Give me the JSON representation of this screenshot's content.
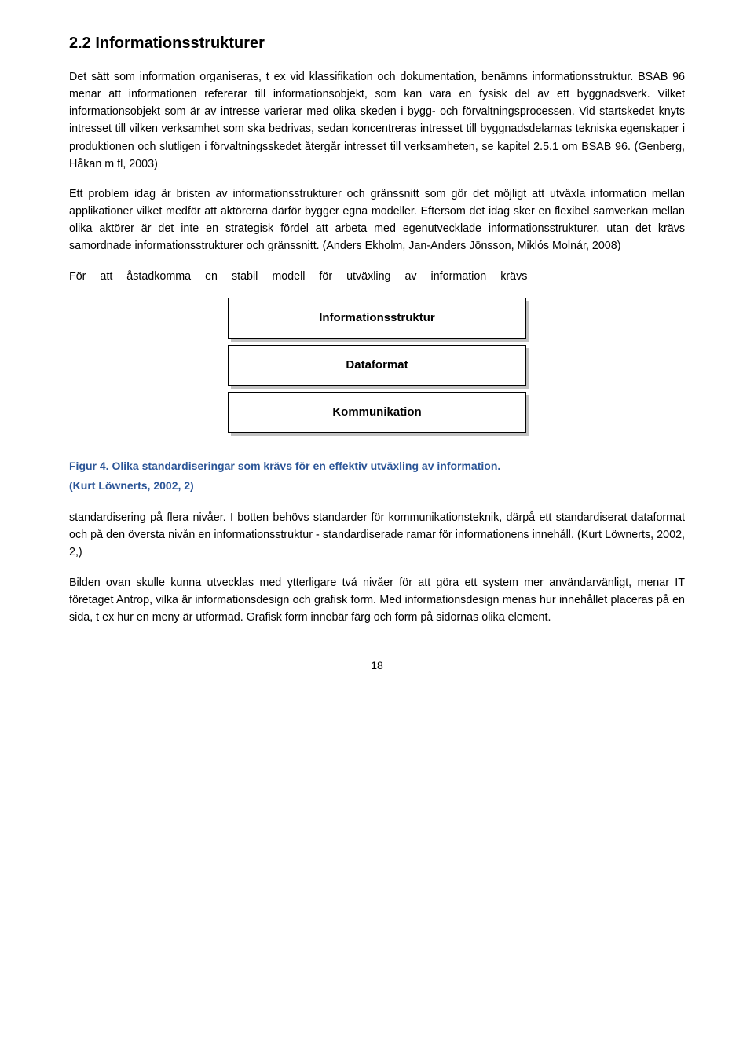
{
  "section": {
    "heading": "2.2 Informationsstrukturer",
    "paragraphs": [
      "Det sätt som information organiseras, t ex vid klassifikation och dokumentation, benämns informationsstruktur. BSAB 96 menar att informationen refererar till informationsobjekt, som kan vara en fysisk del av ett byggnadsverk. Vilket informationsobjekt som är av intresse varierar med olika skeden i bygg- och förvaltningsprocessen. Vid startskedet knyts intresset till vilken verksamhet som ska bedrivas, sedan koncentreras intresset till byggnadsdelarnas tekniska egenskaper i produktionen och slutligen i förvaltningsskedet återgår intresset till verksamheten, se kapitel 2.5.1 om BSAB 96. (Genberg, Håkan m fl, 2003)",
      "Ett problem idag är bristen av informationsstrukturer och gränssnitt som gör det möjligt att utväxla information mellan applikationer vilket medför att aktörerna därför bygger egna modeller. Eftersom det idag sker en flexibel samverkan mellan olika aktörer är det inte en strategisk fördel att arbeta med egenutvecklade informationsstrukturer, utan det krävs samordnade informationsstrukturer och gränssnitt. (Anders Ekholm, Jan-Anders Jönsson, Miklós Molnár, 2008)",
      "För att åstadkomma en stabil modell för utväxling av information krävs"
    ]
  },
  "diagram": {
    "type": "flowchart",
    "background_color": "#ffffff",
    "box_border_color": "#000000",
    "box_fill": "#ffffff",
    "shadow_color": "#c2c2c2",
    "font_weight": "bold",
    "font_size_pt": 11,
    "nodes": [
      {
        "label": "Informationsstruktur"
      },
      {
        "label": "Dataformat"
      },
      {
        "label": "Kommunikation"
      }
    ]
  },
  "figure": {
    "caption": "Figur 4. Olika standardiseringar som krävs för en effektiv utväxling av information.",
    "subcaption": "(Kurt Löwnerts, 2002, 2)",
    "caption_color": "#2b5597"
  },
  "after_figure_paragraphs": [
    "standardisering på flera nivåer. I botten behövs standarder för kommunikationsteknik, därpå ett standardiserat dataformat och på den översta nivån en informationsstruktur - standardiserade ramar för informationens innehåll. (Kurt Löwnerts, 2002, 2,)",
    "Bilden ovan skulle kunna utvecklas med ytterligare två nivåer för att göra ett system mer användarvänligt, menar IT företaget Antrop, vilka är informationsdesign och grafisk form. Med informationsdesign menas hur innehållet placeras på en sida, t ex hur en meny är utformad. Grafisk form innebär färg och form på sidornas olika element."
  ],
  "page_number": "18"
}
